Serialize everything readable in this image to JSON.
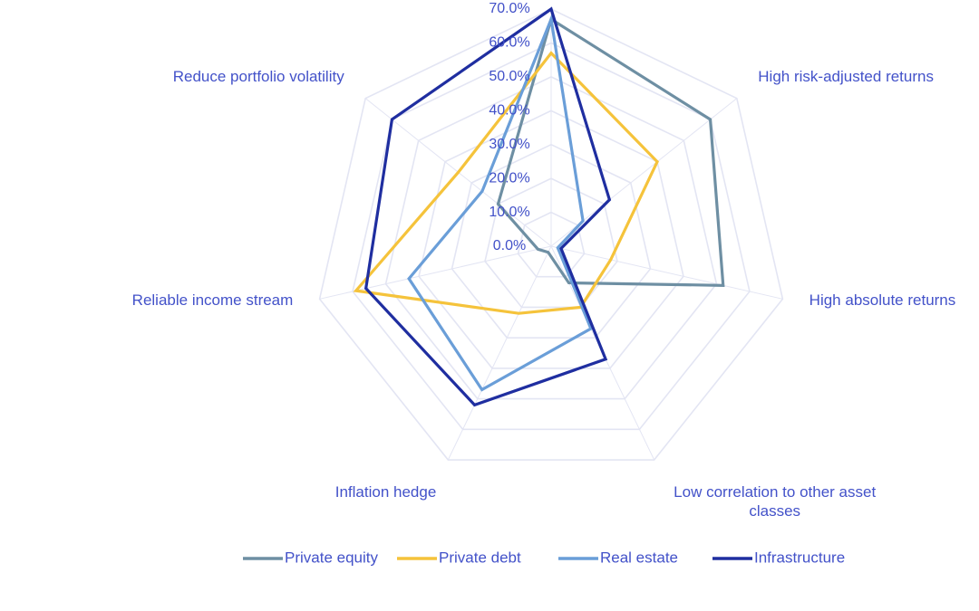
{
  "chart_data": {
    "type": "radar",
    "axes": [
      "",
      "High risk-adjusted returns",
      "High absolute returns",
      "Low correlation to other asset classes",
      "Inflation hedge",
      "Reliable income stream",
      "Reduce portfolio volatility"
    ],
    "axis_label_lines": [
      [],
      [
        "High risk-adjusted returns"
      ],
      [
        "High absolute returns"
      ],
      [
        "Low correlation to other asset",
        "classes"
      ],
      [
        "Inflation hedge"
      ],
      [
        "Reliable income stream"
      ],
      [
        "Reduce portfolio volatility"
      ]
    ],
    "range": [
      0,
      70
    ],
    "ticks": [
      0,
      10,
      20,
      30,
      40,
      50,
      60,
      70
    ],
    "tick_labels": [
      "0.0%",
      "10.0%",
      "20.0%",
      "30.0%",
      "40.0%",
      "50.0%",
      "60.0%",
      "70.0%"
    ],
    "series": [
      {
        "name": "Private equity",
        "color": "#6e8fa3",
        "values": [
          67,
          60,
          52,
          12,
          2,
          4,
          20
        ]
      },
      {
        "name": "Private debt",
        "color": "#f5c33b",
        "values": [
          57,
          40,
          18,
          20,
          22,
          59,
          35
        ]
      },
      {
        "name": "Real estate",
        "color": "#6a9ed8",
        "values": [
          67,
          12,
          2,
          27,
          47,
          43,
          26
        ]
      },
      {
        "name": "Infrastructure",
        "color": "#1f2ea0",
        "values": [
          70,
          22,
          3,
          37,
          52,
          56,
          60
        ]
      }
    ],
    "legend": {
      "position": "bottom"
    }
  }
}
